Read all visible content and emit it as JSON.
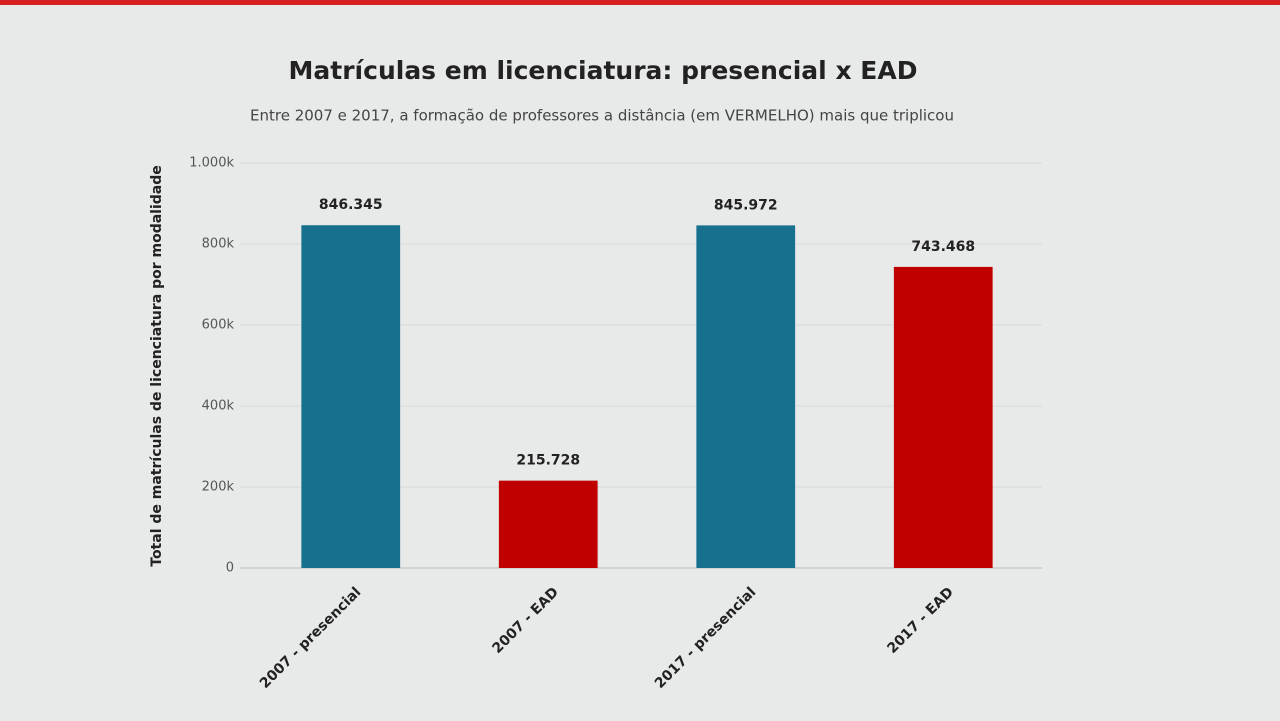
{
  "chart_data": {
    "type": "bar",
    "title": "Matrículas em licenciatura: presencial x EAD",
    "subtitle": "Entre 2007 e 2017, a formação de professores a distância (em VERMELHO) mais que triplicou",
    "y_label": "Total de matrículas de licenciatura por modalidade",
    "categories": [
      "2007 - presencial",
      "2007 - EAD",
      "2017 - presencial",
      "2017 - EAD"
    ],
    "values": [
      846345,
      215728,
      845972,
      743468
    ],
    "value_labels": [
      "846.345",
      "215.728",
      "845.972",
      "743.468"
    ],
    "colors": [
      "#17708e",
      "#c00000",
      "#17708e",
      "#c00000"
    ],
    "ylim": [
      0,
      1000000
    ],
    "yticks": [
      0,
      {
        "value": 200000,
        "label": "200k"
      },
      {
        "value": 400000,
        "label": "400k"
      },
      {
        "value": 600000,
        "label": "600k"
      },
      {
        "value": 800000,
        "label": "800k"
      },
      {
        "value": 1000000,
        "label": "1.000k"
      }
    ],
    "grid": true
  }
}
